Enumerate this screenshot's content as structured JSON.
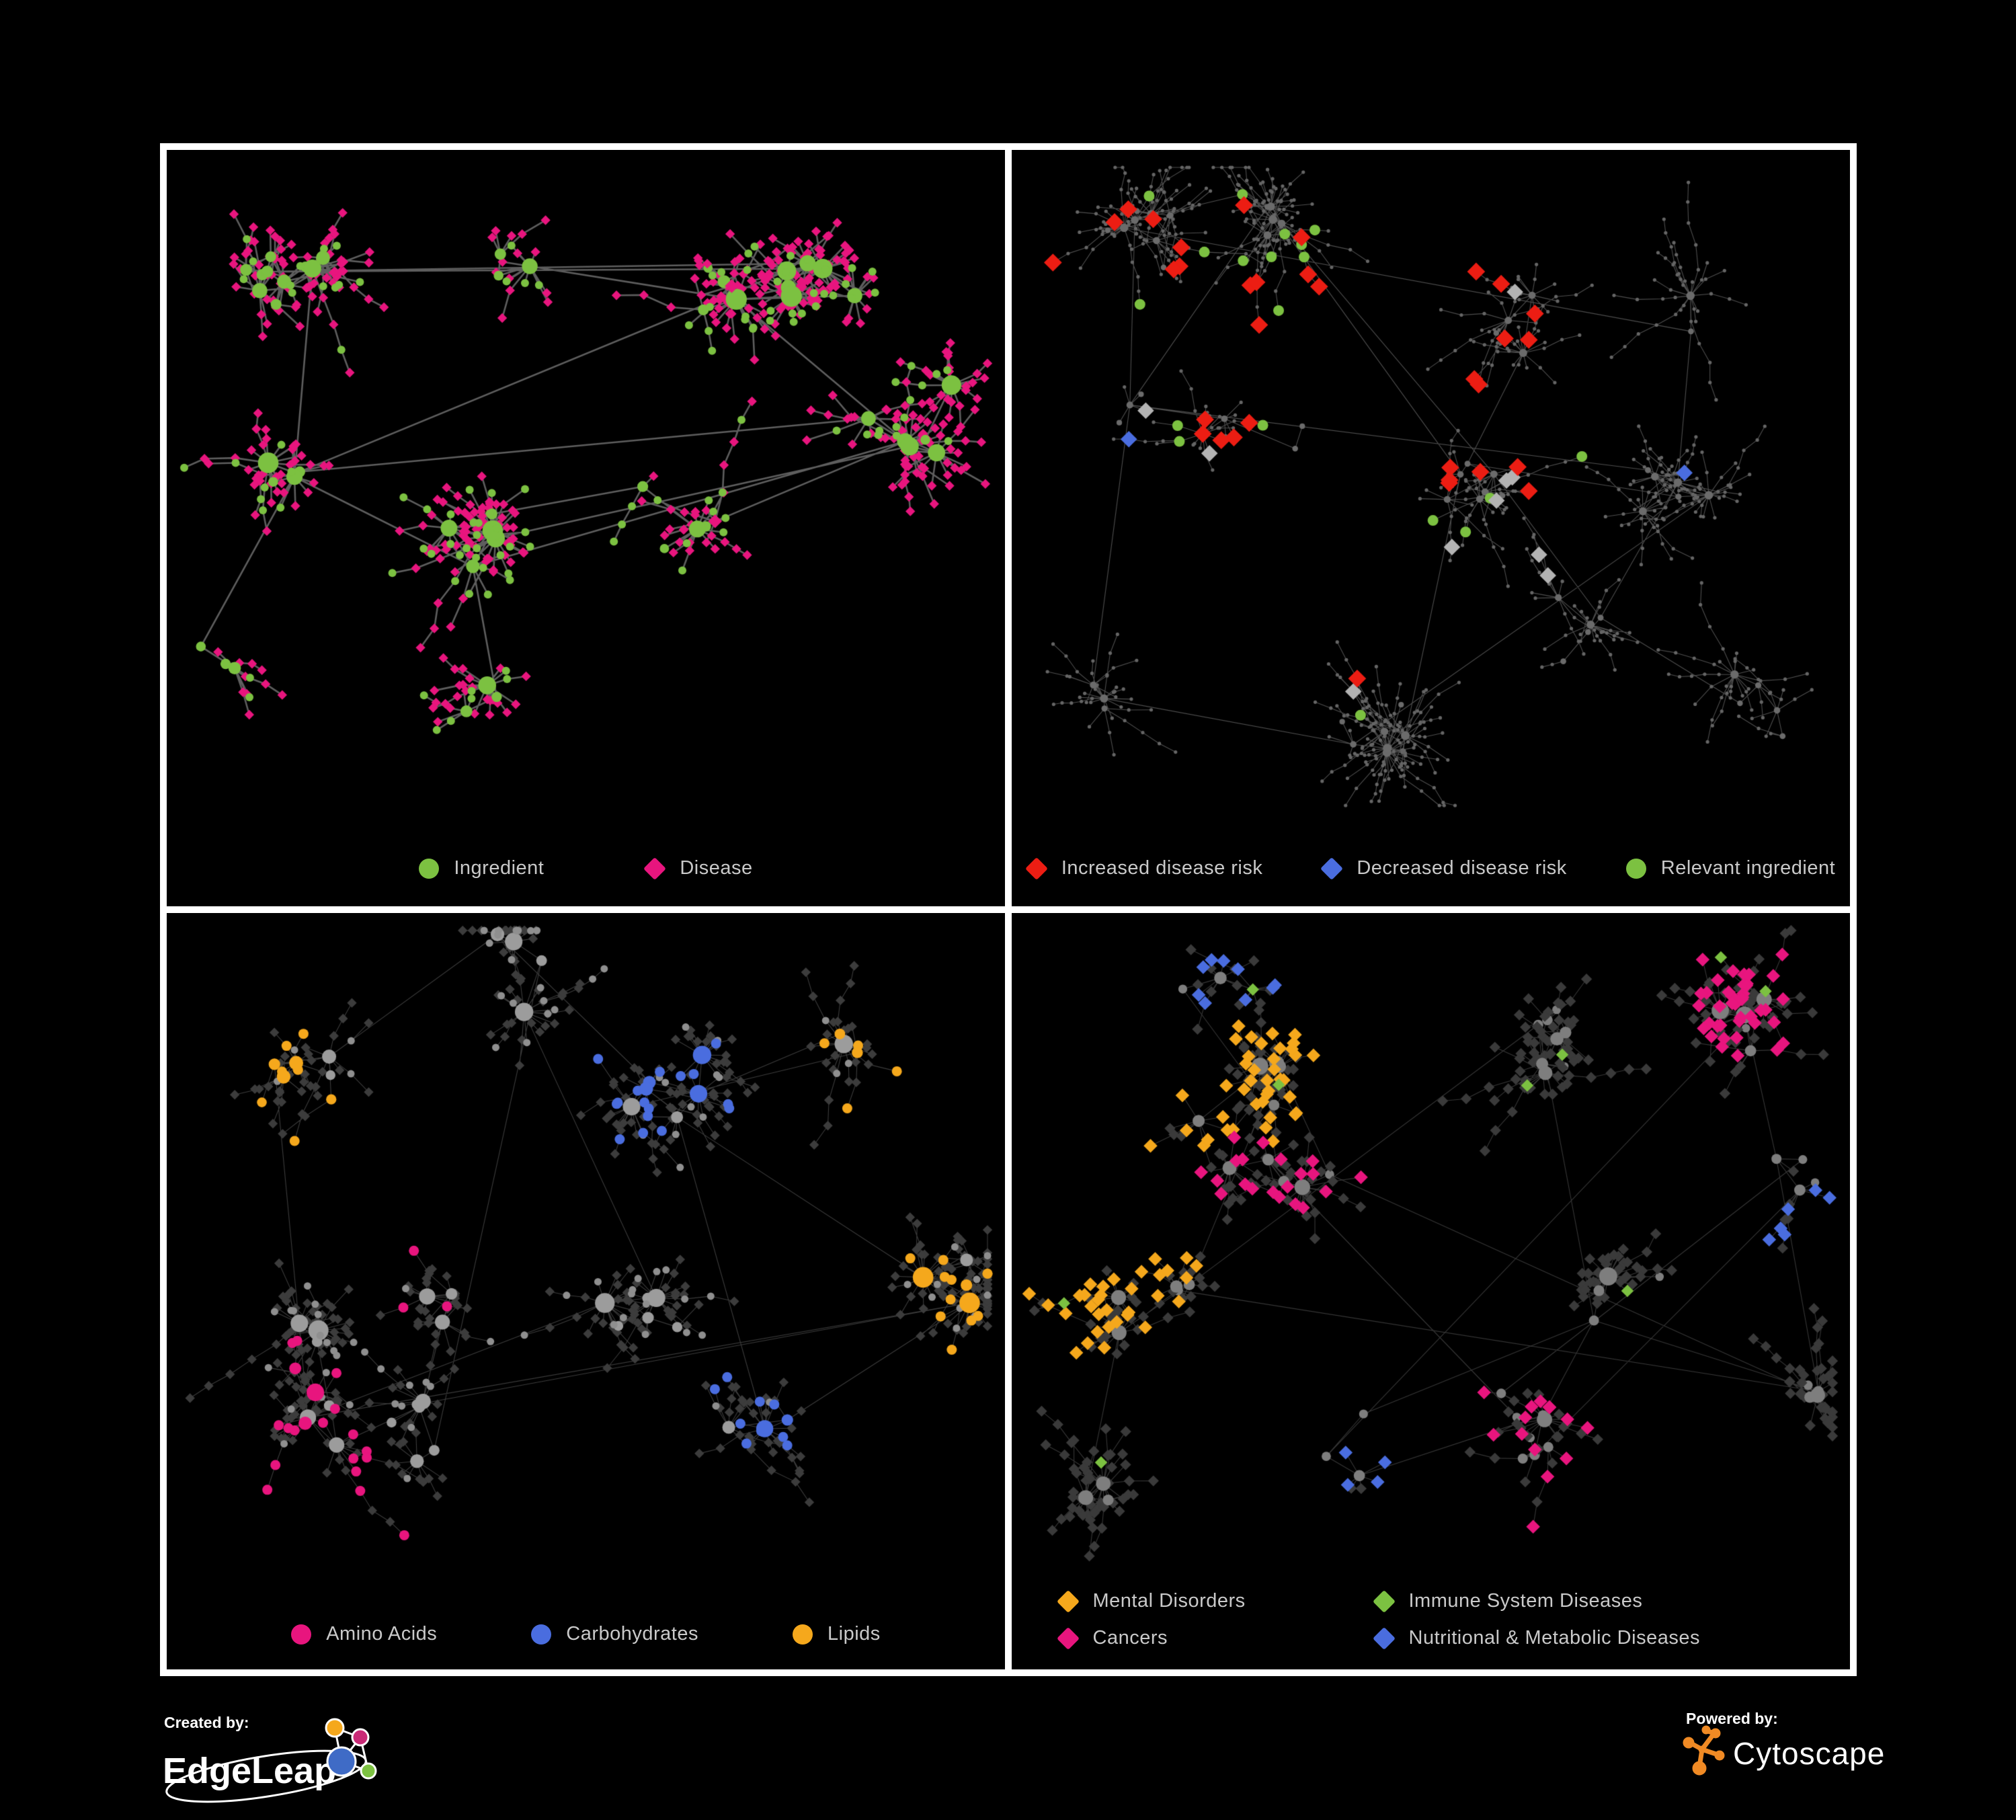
{
  "figure": {
    "background": "#000000",
    "panel_background": "#000000",
    "panel_border_color": "#FFFFFF",
    "legend_text_color": "#C9C9C9"
  },
  "colors": {
    "green": "#7CC141",
    "pink": "#E8157E",
    "red": "#EC1D13",
    "blue": "#4A6DDF",
    "orange": "#F5A81C",
    "silver": "#B3B3B3",
    "gray_node": "#9C9C9C",
    "dark_diamond": "#3A3A3A"
  },
  "panels": [
    {
      "id": "ingredient-disease",
      "legend": [
        {
          "shape": "circle",
          "color": "#7CC141",
          "label": "Ingredient"
        },
        {
          "shape": "diamond",
          "color": "#E8157E",
          "label": "Disease"
        }
      ],
      "net": {
        "seed": 11,
        "clusters": 10,
        "backbone": 52,
        "extra_links": 6,
        "max_leaves": 22,
        "leaf_pow": 1.8,
        "chain_prob": 0.32,
        "leaf_dist": 34,
        "edge": {
          "color": "#6E6E6E",
          "width": 2.6,
          "alpha": 0.85
        },
        "hub": {
          "shape": "circle",
          "color": "#7CC141",
          "size": 6.5,
          "size_deg": 0.4,
          "variant": {
            "prob": 0.15,
            "shape": "diamond",
            "color": "#E8157E",
            "size": 10
          }
        },
        "leaf": {
          "shape": "diamond",
          "color": "#E8157E",
          "size": 7,
          "variant": {
            "prob": 0.2,
            "shape": "circle",
            "color": "#7CC141",
            "size": 6
          }
        }
      }
    },
    {
      "id": "disease-risk",
      "legend": [
        {
          "shape": "diamond",
          "color": "#EC1D13",
          "label": "Increased disease risk"
        },
        {
          "shape": "diamond",
          "color": "#4A6DDF",
          "label": "Decreased disease risk"
        },
        {
          "shape": "circle",
          "color": "#7CC141",
          "label": "Relevant ingredient"
        }
      ],
      "net": {
        "seed": 22,
        "clusters": 12,
        "backbone": 60,
        "extra_links": 8,
        "max_leaves": 20,
        "leaf_pow": 2.2,
        "chain_prob": 0.5,
        "leaf_dist": 28,
        "edge": {
          "color": "#575757",
          "width": 1.1,
          "alpha": 0.9
        },
        "hub": {
          "shape": "circle",
          "color": "#6B6B6B",
          "size": 4,
          "size_deg": 0.12
        },
        "leaf": {
          "shape": "circle",
          "color": "#656565",
          "size": 2.6
        },
        "overlays": [
          {
            "prob": 0.3,
            "shape": "diamond",
            "color": "#EC1D13",
            "size": 13,
            "focus": [
              0.33,
              0.4
            ],
            "falloff": 0.16
          },
          {
            "prob": 0.18,
            "shape": "diamond",
            "color": "#4A6DDF",
            "size": 12,
            "focus": [
              0.3,
              0.5
            ],
            "falloff": 0.1
          },
          {
            "prob": 0.5,
            "shape": "diamond",
            "color": "#4A6DDF",
            "size": 12,
            "focus": [
              0.95,
              0.52
            ],
            "falloff": 0.04
          },
          {
            "prob": 0.14,
            "shape": "diamond",
            "color": "#B3B3B3",
            "size": 12,
            "focus": [
              0.42,
              0.5
            ],
            "falloff": 0.14
          },
          {
            "prob": 0.22,
            "shape": "circle",
            "color": "#7CC141",
            "size": 8,
            "focus": [
              0.3,
              0.38
            ],
            "falloff": 0.16
          }
        ]
      }
    },
    {
      "id": "compound-classes",
      "legend": [
        {
          "shape": "circle",
          "color": "#E8157E",
          "label": "Amino Acids"
        },
        {
          "shape": "circle",
          "color": "#4A6DDF",
          "label": "Carbohydrates"
        },
        {
          "shape": "circle",
          "color": "#F5A81C",
          "label": "Lipids"
        }
      ],
      "net": {
        "seed": 33,
        "clusters": 11,
        "backbone": 55,
        "extra_links": 6,
        "max_leaves": 26,
        "leaf_pow": 2.0,
        "chain_prob": 0.3,
        "leaf_dist": 33,
        "edge": {
          "color": "#787878",
          "width": 1.1,
          "alpha": 0.5
        },
        "hub": {
          "shape": "circle",
          "color": "#9C9C9C",
          "size": 7,
          "size_deg": 0.32
        },
        "leaf": {
          "shape": "diamond",
          "color": "#3C3C3C",
          "size": 7,
          "variant": {
            "prob": 0.26,
            "shape": "circle",
            "color": "#8F8F8F",
            "size": 5.5
          }
        },
        "bias": {
          "shape": "circle",
          "prob": 0.6,
          "size": 7.5,
          "colors": [
            "#F5A81C",
            null,
            "#4A6DDF",
            "#F5A81C",
            null,
            "#E8157E",
            null,
            "#F5A81C",
            "#E8157E",
            null,
            "#4A6DDF"
          ]
        }
      }
    },
    {
      "id": "disease-categories",
      "legend": [
        {
          "shape": "diamond",
          "color": "#F5A81C",
          "label": "Mental Disorders"
        },
        {
          "shape": "diamond",
          "color": "#7CC141",
          "label": "Immune System Diseases"
        },
        {
          "shape": "diamond",
          "color": "#E8157E",
          "label": "Cancers"
        },
        {
          "shape": "diamond",
          "color": "#4A6DDF",
          "label": "Nutritional & Metabolic Diseases"
        }
      ],
      "net": {
        "seed": 44,
        "clusters": 12,
        "backbone": 58,
        "extra_links": 8,
        "max_leaves": 24,
        "leaf_pow": 2.0,
        "chain_prob": 0.33,
        "leaf_dist": 31,
        "edge": {
          "color": "#7A7A7A",
          "width": 1.1,
          "alpha": 0.45
        },
        "hub": {
          "shape": "circle",
          "color": "#7E7E7E",
          "size": 6,
          "size_deg": 0.3
        },
        "leaf": {
          "shape": "diamond",
          "color": "#3A3A3A",
          "size": 8
        },
        "bias": {
          "shape": "diamond",
          "prob": 0.42,
          "size": 10,
          "colors": [
            "#4A6DDF",
            "#F5A81C",
            null,
            "#E8157E",
            "#F5A81C",
            "#E8157E",
            null,
            "#4A6DDF",
            null,
            "#4A6DDF",
            "#E8157E",
            null
          ]
        },
        "overlays": [
          {
            "prob": 0.012,
            "shape": "diamond",
            "color": "#7CC141",
            "size": 9
          }
        ]
      }
    }
  ],
  "branding": {
    "created_by": "Created by:",
    "edgeleap": "EdgeLeap",
    "powered_by": "Powered by:",
    "cytoscape": "Cytoscape",
    "cytoscape_orange": "#F08A24",
    "edgeleap_node_colors": [
      "#F5A81C",
      "#C92A76",
      "#3F6BC6",
      "#7DC242"
    ]
  }
}
